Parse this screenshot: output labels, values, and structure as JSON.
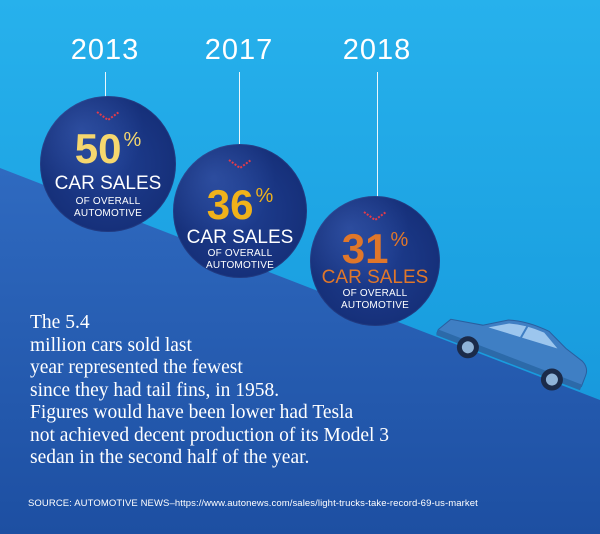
{
  "chart_data": {
    "type": "bubble-infographic",
    "metric": "car sales share of overall automotive",
    "series": [
      {
        "year": "2013",
        "value": 50,
        "unit": "%",
        "label": "CAR SALES",
        "sublabel": "OF OVERALL AUTOMOTIVE",
        "value_color": "#f5d76e"
      },
      {
        "year": "2017",
        "value": 36,
        "unit": "%",
        "label": "CAR SALES",
        "sublabel": "OF OVERALL AUTOMOTIVE",
        "value_color": "#f0b21a"
      },
      {
        "year": "2018",
        "value": 31,
        "unit": "%",
        "label": "CAR SALES",
        "sublabel": "OF OVERALL AUTOMOTIVE",
        "value_color": "#e0772a"
      }
    ]
  },
  "headline": "The 5.4\nmillion cars sold last\nyear represented the fewest\nsince they had tail fins, in 1958.\nFigures would have been lower had Tesla\nnot achieved decent production of its Model 3\nsedan in the second half of the year.",
  "source": "SOURCE: AUTOMOTIVE NEWS–https://www.autonews.com/sales/light-trucks-take-record-69-us-market",
  "colors": {
    "sky": "#27b1ec",
    "slope": "#2c63b6",
    "bubble": "#17327d",
    "chevron": "#e23b4a",
    "car": "#3f7fc4"
  }
}
